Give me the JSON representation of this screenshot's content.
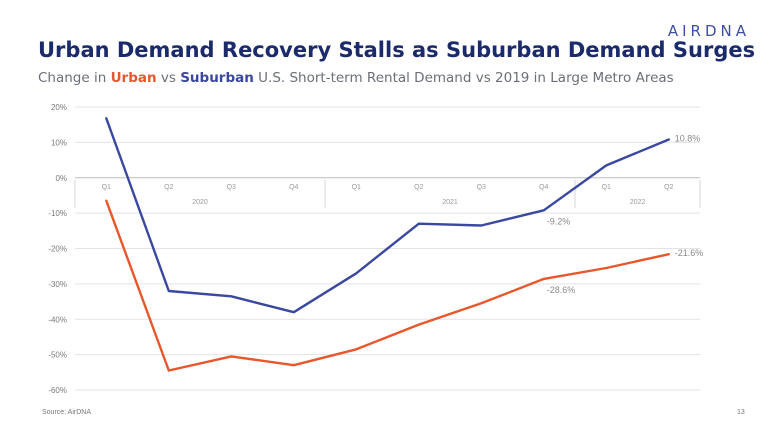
{
  "brand": {
    "logo_text": "AIRDNA"
  },
  "footer": {
    "source": "Source: AirDNA",
    "page_number": "13"
  },
  "chart_data": {
    "type": "line",
    "title": "Urban Demand Recovery Stalls as Suburban Demand Surges",
    "subtitle": {
      "prefix": "Change in ",
      "urban": "Urban",
      "vs": " vs ",
      "suburban": "Suburban",
      "suffix": " U.S. Short-term Rental Demand vs 2019 in Large Metro Areas"
    },
    "categories": [
      "Q1",
      "Q2",
      "Q3",
      "Q4",
      "Q1",
      "Q2",
      "Q3",
      "Q4",
      "Q1",
      "Q2"
    ],
    "year_groups": [
      {
        "label": "2020",
        "start": 0,
        "end": 3
      },
      {
        "label": "2021",
        "start": 4,
        "end": 7
      },
      {
        "label": "2022",
        "start": 8,
        "end": 9
      }
    ],
    "y_ticks": [
      "20%",
      "10%",
      "0%",
      "-10%",
      "-20%",
      "-30%",
      "-40%",
      "-50%",
      "-60%"
    ],
    "ylim": [
      -60,
      20
    ],
    "grid": true,
    "series": [
      {
        "name": "Suburban",
        "color": "#3a48a0",
        "values": [
          16.8,
          -32,
          -33.5,
          -38,
          -27,
          -13,
          -13.5,
          -9.2,
          3.5,
          10.8
        ],
        "labels": [
          {
            "index": 7,
            "text": "-9.2%"
          },
          {
            "index": 9,
            "text": "10.8%"
          }
        ]
      },
      {
        "name": "Urban",
        "color": "#e8572b",
        "values": [
          -6.5,
          -54.5,
          -50.5,
          -53,
          -48.5,
          -41.5,
          -35.5,
          -28.6,
          -25.5,
          -21.6
        ],
        "labels": [
          {
            "index": 7,
            "text": "-28.6%"
          },
          {
            "index": 9,
            "text": "-21.6%"
          }
        ]
      }
    ]
  }
}
